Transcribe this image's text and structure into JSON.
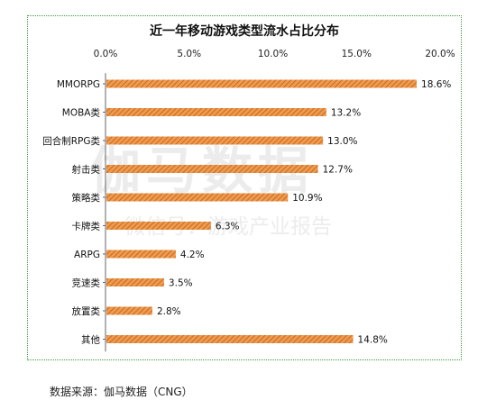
{
  "watermark": {
    "main": "伽马数据",
    "sub": "微信号：游戏产业报告"
  },
  "source": "数据来源：伽马数据（CNG）",
  "colors": {
    "bar": "#f09a4e",
    "hatch": "#b85f1a",
    "frame": "#3e9a3e"
  },
  "chart_data": {
    "type": "bar",
    "orientation": "horizontal",
    "title": "近一年移动游戏类型流水占比分布",
    "categories": [
      "MMORPG",
      "MOBA类",
      "回合制RPG类",
      "射击类",
      "策略类",
      "卡牌类",
      "ARPG",
      "竞速类",
      "放置类",
      "其他"
    ],
    "values": [
      18.6,
      13.2,
      13.0,
      12.7,
      10.9,
      6.3,
      4.2,
      3.5,
      2.8,
      14.8
    ],
    "value_labels": [
      "18.6%",
      "13.2%",
      "13.0%",
      "12.7%",
      "10.9%",
      "6.3%",
      "4.2%",
      "3.5%",
      "2.8%",
      "14.8%"
    ],
    "x_ticks": [
      0,
      5,
      10,
      15,
      20
    ],
    "x_tick_labels": [
      "0.0%",
      "5.0%",
      "10.0%",
      "15.0%",
      "20.0%"
    ],
    "xlim": [
      0,
      20
    ],
    "xaxis_position": "top",
    "grid": false,
    "legend": "none"
  }
}
